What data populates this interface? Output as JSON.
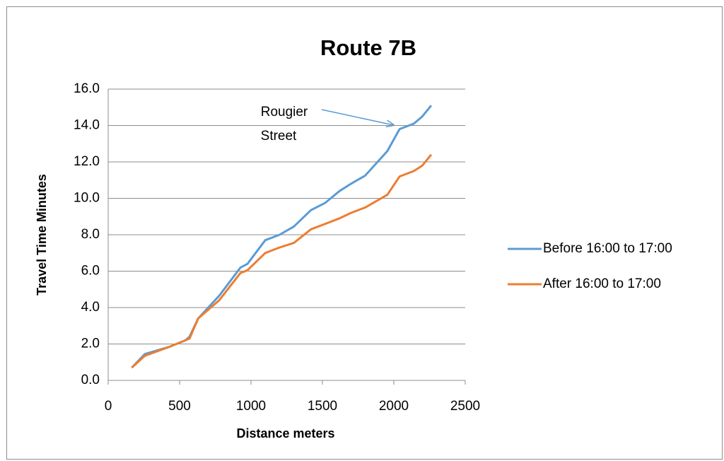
{
  "chart_data": {
    "type": "line",
    "title": "Route 7B",
    "xlabel": "Distance meters",
    "ylabel": "Travel Time Minutes",
    "annotation": {
      "lines": [
        "Rougier",
        "Street"
      ]
    },
    "x": [
      165,
      257,
      430,
      540,
      570,
      630,
      777,
      926,
      975,
      1100,
      1200,
      1300,
      1420,
      1520,
      1620,
      1700,
      1800,
      1955,
      2040,
      2140,
      2200,
      2262
    ],
    "series": [
      {
        "name": "Before 16:00 to 17:00",
        "color": "#5b9bd5",
        "values": [
          0.7,
          1.45,
          1.85,
          2.2,
          2.4,
          3.4,
          4.65,
          6.2,
          6.4,
          7.7,
          8.0,
          8.45,
          9.35,
          9.75,
          10.4,
          10.8,
          11.25,
          12.6,
          13.8,
          14.1,
          14.5,
          15.1
        ]
      },
      {
        "name": "After 16:00 to 17:00",
        "color": "#ed7d31",
        "values": [
          0.7,
          1.35,
          1.85,
          2.2,
          2.3,
          3.4,
          4.4,
          5.9,
          6.05,
          7.0,
          7.3,
          7.55,
          8.3,
          8.6,
          8.9,
          9.2,
          9.5,
          10.2,
          11.2,
          11.5,
          11.8,
          12.4
        ]
      }
    ],
    "xlim": [
      0,
      2500
    ],
    "xticks": [
      0,
      500,
      1000,
      1500,
      2000,
      2500
    ],
    "ylim": [
      0,
      16
    ],
    "yticks": [
      {
        "value": 0,
        "label": "0.0"
      },
      {
        "value": 2,
        "label": "2.0"
      },
      {
        "value": 4,
        "label": "4.0"
      },
      {
        "value": 6,
        "label": "6.0"
      },
      {
        "value": 8,
        "label": "8.0"
      },
      {
        "value": 10,
        "label": "10.0"
      },
      {
        "value": 12,
        "label": "12.0"
      },
      {
        "value": 14,
        "label": "14.0"
      },
      {
        "value": 16,
        "label": "16.0"
      }
    ],
    "grid": true,
    "legend": "right"
  }
}
